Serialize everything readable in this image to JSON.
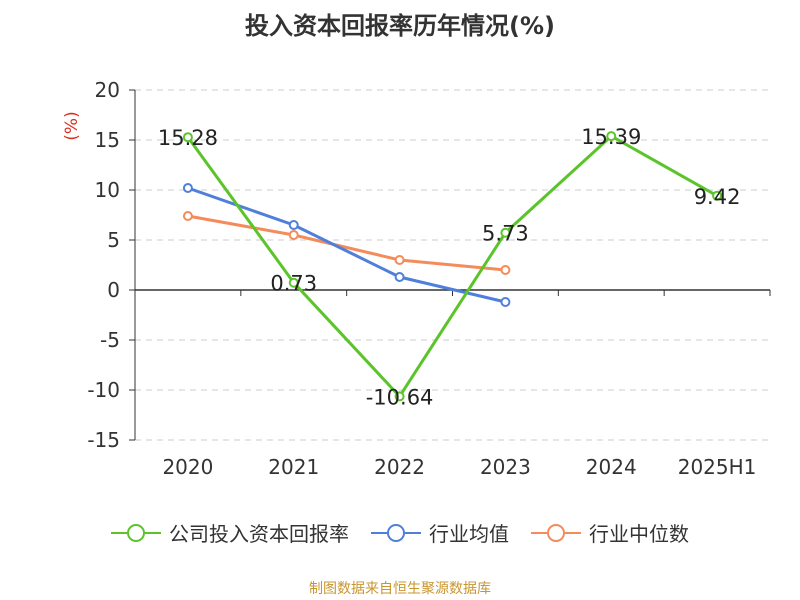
{
  "title": "投入资本回报率历年情况(%)",
  "source": "制图数据来自恒生聚源数据库",
  "colors": {
    "roic": "#5cc42b",
    "industry_avg": "#4f7fdb",
    "industry_median": "#f48b5a",
    "grid": "#cccccc",
    "axis": "#333333",
    "unit": "#d9301e"
  },
  "chart_data": {
    "type": "line",
    "title": "投入资本回报率历年情况(%)",
    "xlabel": "",
    "ylabel": "(%)",
    "categories": [
      "2020",
      "2021",
      "2022",
      "2023",
      "2024",
      "2025H1"
    ],
    "ylim": [
      -15,
      20
    ],
    "yticks": [
      20,
      15,
      10,
      5,
      0,
      -5,
      -10,
      -15
    ],
    "grid": true,
    "legend_position": "bottom",
    "series": [
      {
        "name": "公司投入资本回报率",
        "color_key": "roic",
        "values": [
          15.28,
          0.73,
          -10.64,
          5.73,
          15.39,
          9.42
        ],
        "labels": [
          "15.28",
          "0.73",
          "-10.64",
          "5.73",
          "15.39",
          "9.42"
        ]
      },
      {
        "name": "行业均值",
        "color_key": "industry_avg",
        "values": [
          10.2,
          6.5,
          1.3,
          -1.2,
          null,
          null
        ]
      },
      {
        "name": "行业中位数",
        "color_key": "industry_median",
        "values": [
          7.4,
          5.5,
          3.0,
          2.0,
          null,
          null
        ]
      }
    ]
  }
}
